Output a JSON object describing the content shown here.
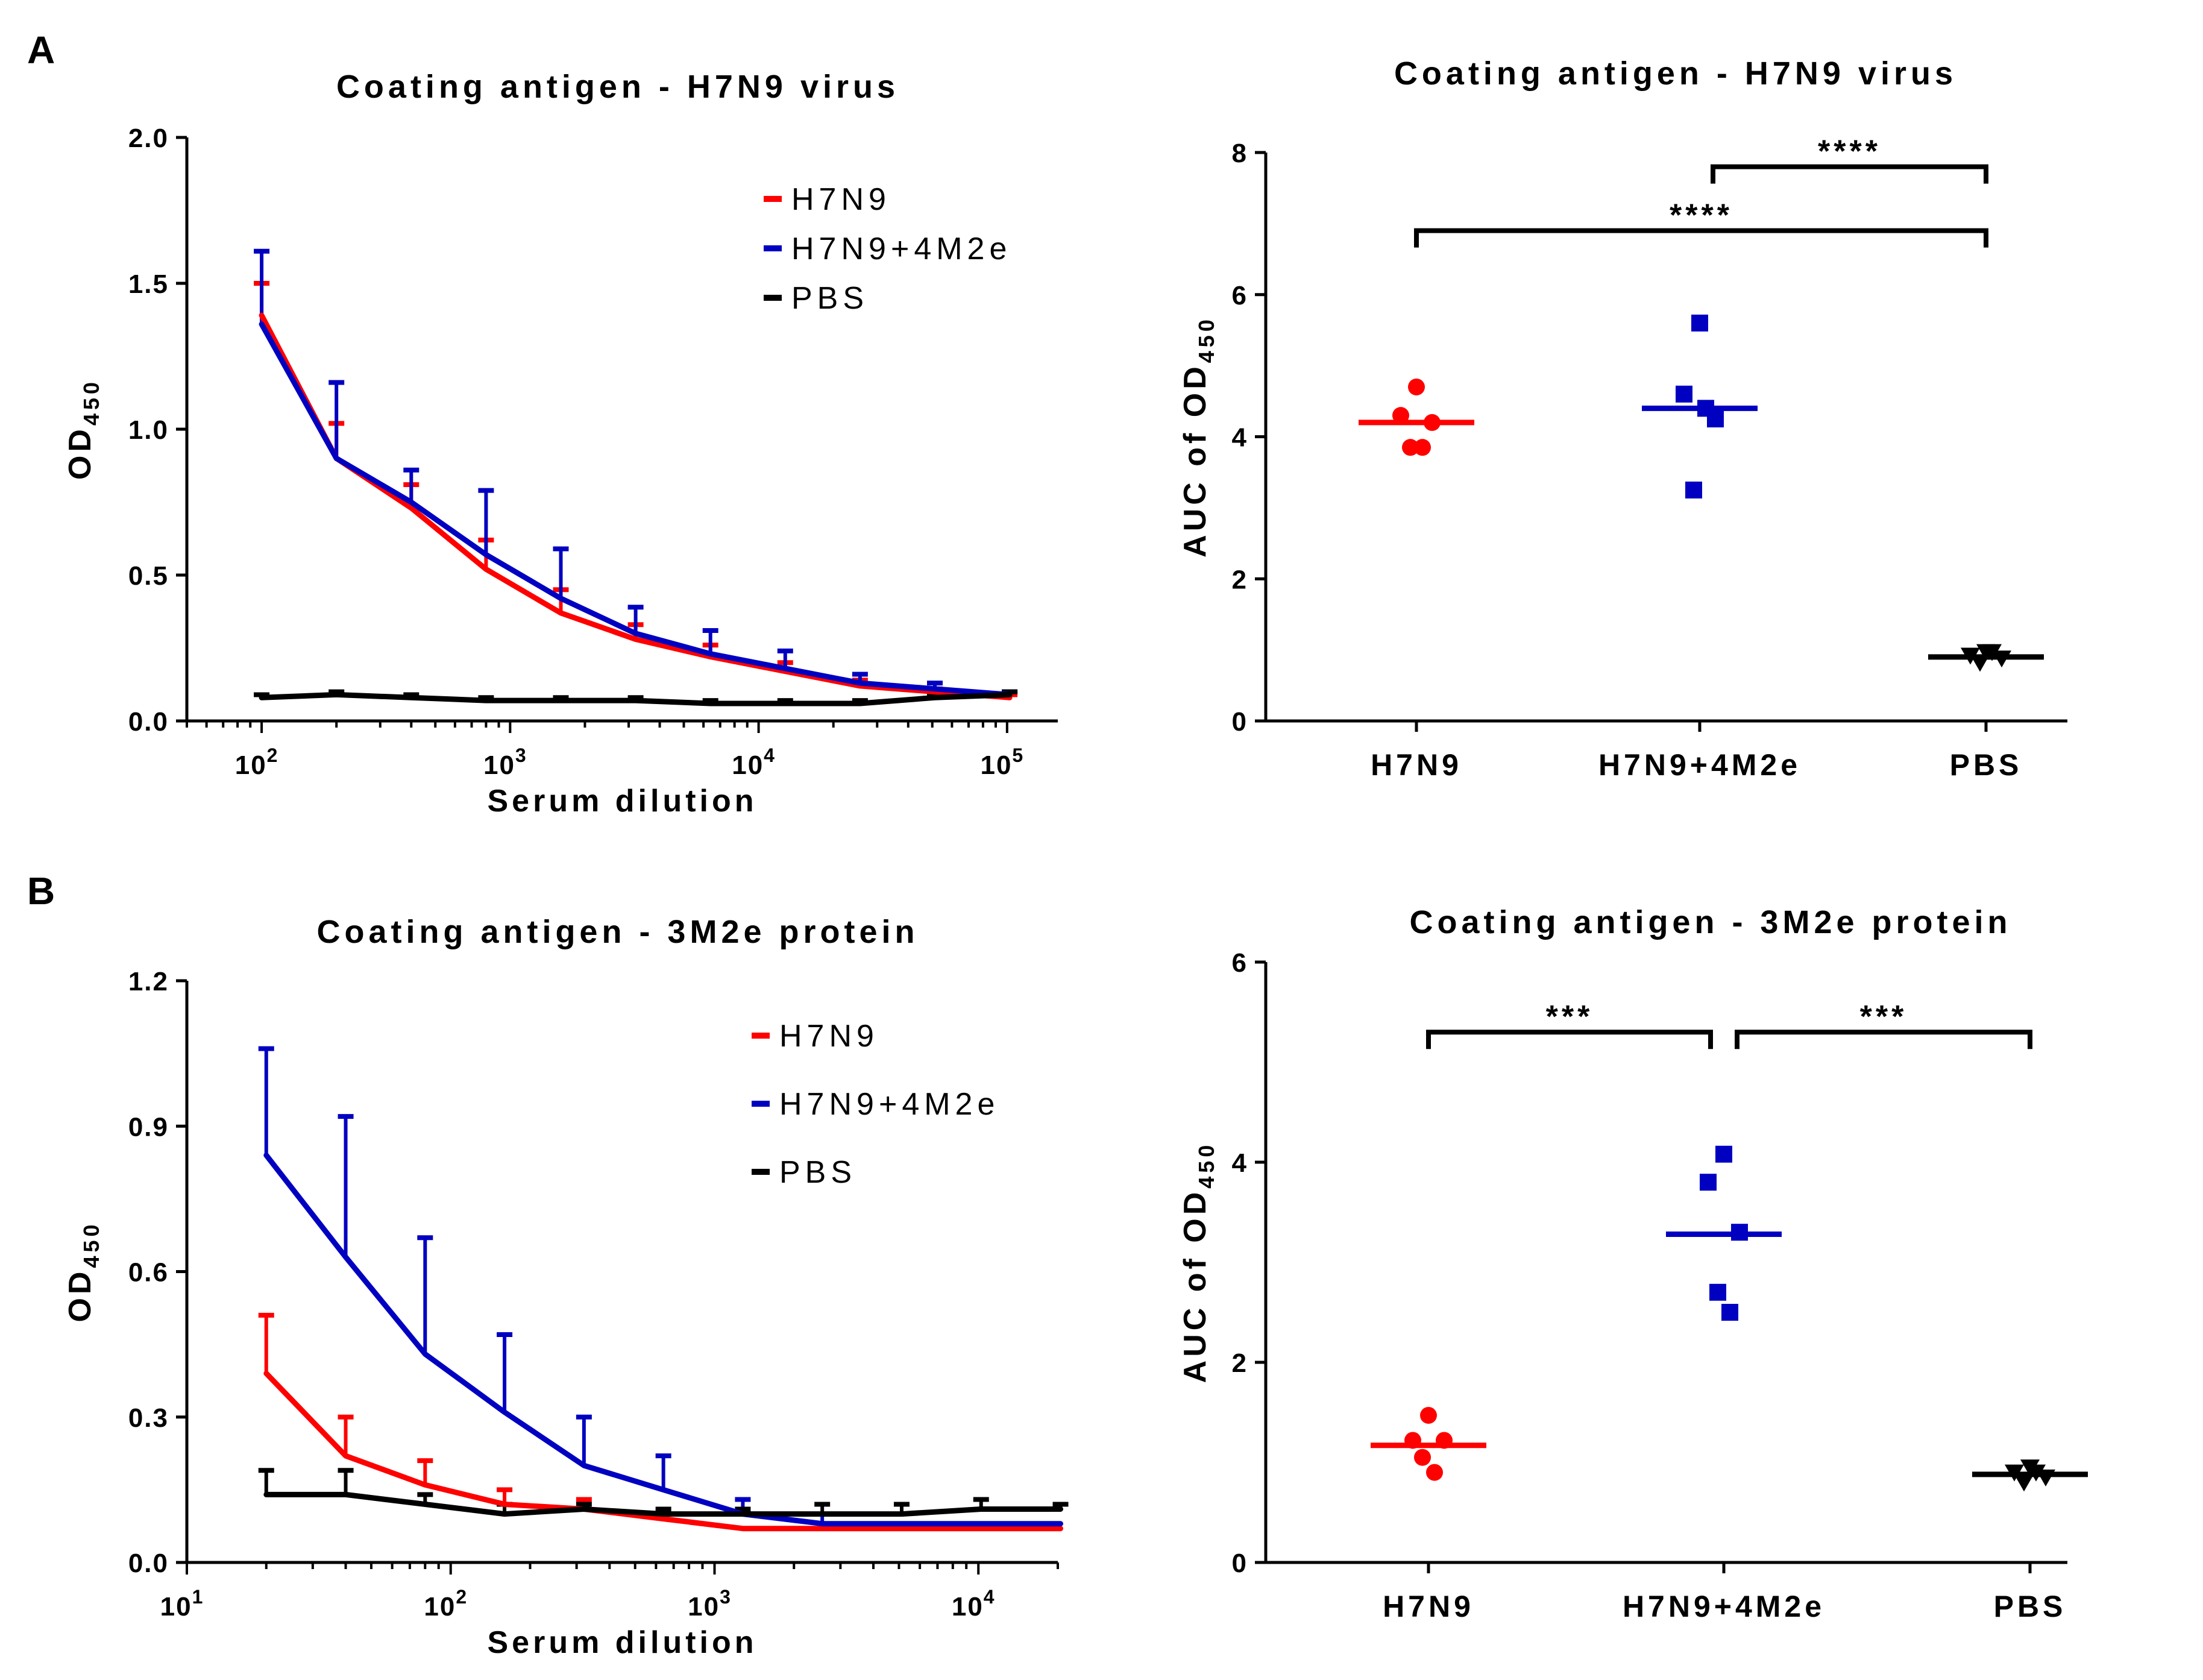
{
  "panels": {
    "a": "A",
    "b": "B"
  },
  "colors": {
    "h7n9": "#ff0000",
    "h7n9_4m2e": "#0000c0",
    "pbs": "#000000"
  },
  "chart_data": [
    {
      "type": "line",
      "title": "Coating antigen - H7N9 virus",
      "xlabel": "Serum dilution",
      "ylabel": "OD",
      "ylabel_sub": "450",
      "xscale": "log",
      "xlim": [
        50,
        160000
      ],
      "ylim": [
        0,
        2.0
      ],
      "yticks": [
        "0.0",
        "0.5",
        "1.0",
        "1.5",
        "2.0"
      ],
      "ytick_values": [
        0,
        0.5,
        1.0,
        1.5,
        2.0
      ],
      "xticks": [
        {
          "base": "10",
          "exp": "2",
          "value": 100
        },
        {
          "base": "10",
          "exp": "3",
          "value": 1000
        },
        {
          "base": "10",
          "exp": "4",
          "value": 10000
        },
        {
          "base": "10",
          "exp": "5",
          "value": 100000
        }
      ],
      "legend": [
        "H7N9",
        "H7N9+4M2e",
        "PBS"
      ],
      "x": [
        100,
        200,
        400,
        800,
        1600,
        3200,
        6400,
        12800,
        25600,
        51200,
        102400
      ],
      "series": [
        {
          "name": "H7N9",
          "color_key": "h7n9",
          "values": [
            1.39,
            0.9,
            0.73,
            0.52,
            0.37,
            0.28,
            0.22,
            0.17,
            0.12,
            0.1,
            0.08
          ],
          "errors": [
            0.11,
            0.12,
            0.08,
            0.1,
            0.08,
            0.05,
            0.04,
            0.03,
            0.02,
            0.01,
            0.01
          ]
        },
        {
          "name": "H7N9+4M2e",
          "color_key": "h7n9_4m2e",
          "values": [
            1.36,
            0.9,
            0.75,
            0.57,
            0.42,
            0.3,
            0.23,
            0.18,
            0.13,
            0.11,
            0.09
          ],
          "errors": [
            0.25,
            0.26,
            0.11,
            0.22,
            0.17,
            0.09,
            0.08,
            0.06,
            0.03,
            0.02,
            0.01
          ]
        },
        {
          "name": "PBS",
          "color_key": "pbs",
          "values": [
            0.08,
            0.09,
            0.08,
            0.07,
            0.07,
            0.07,
            0.06,
            0.06,
            0.06,
            0.08,
            0.09
          ],
          "errors": [
            0.01,
            0.01,
            0.01,
            0.01,
            0.01,
            0.01,
            0.01,
            0.01,
            0.01,
            0.01,
            0.01
          ]
        }
      ]
    },
    {
      "type": "scatter",
      "title": "Coating antigen - H7N9 virus",
      "ylabel": "AUC of OD",
      "ylabel_sub": "450",
      "ylim": [
        0,
        8
      ],
      "yticks": [
        "0",
        "2",
        "4",
        "6",
        "8"
      ],
      "ytick_values": [
        0,
        2,
        4,
        6,
        8
      ],
      "categories": [
        "H7N9",
        "H7N9+4M2e",
        "PBS"
      ],
      "groups": [
        {
          "name": "H7N9",
          "color_key": "h7n9",
          "marker": "circle",
          "points": [
            4.7,
            4.3,
            4.2,
            3.85,
            3.85
          ],
          "mean": 4.2
        },
        {
          "name": "H7N9+4M2e",
          "color_key": "h7n9_4m2e",
          "marker": "square",
          "points": [
            5.6,
            4.6,
            4.25,
            3.25,
            4.4
          ],
          "mean": 4.4
        },
        {
          "name": "PBS",
          "color_key": "pbs",
          "marker": "triangle-down",
          "points": [
            0.97,
            0.92,
            0.88,
            0.82,
            0.97
          ],
          "mean": 0.9
        }
      ],
      "annotations": [
        {
          "from": 1,
          "to": 2,
          "y": 7.8,
          "label": "****"
        },
        {
          "from": 0,
          "to": 2,
          "y": 6.9,
          "label": "****"
        }
      ]
    },
    {
      "type": "line",
      "title": "Coating antigen - 3M2e protein",
      "xlabel": "Serum dilution",
      "ylabel": "OD",
      "ylabel_sub": "450",
      "xscale": "log",
      "xlim": [
        10,
        20000
      ],
      "ylim": [
        0,
        1.2
      ],
      "yticks": [
        "0.0",
        "0.3",
        "0.6",
        "0.9",
        "1.2"
      ],
      "ytick_values": [
        0,
        0.3,
        0.6,
        0.9,
        1.2
      ],
      "xticks": [
        {
          "base": "10",
          "exp": "1",
          "value": 10
        },
        {
          "base": "10",
          "exp": "2",
          "value": 100
        },
        {
          "base": "10",
          "exp": "3",
          "value": 1000
        },
        {
          "base": "10",
          "exp": "4",
          "value": 10000
        }
      ],
      "legend": [
        "H7N9",
        "H7N9+4M2e",
        "PBS"
      ],
      "x": [
        20,
        40,
        80,
        160,
        320,
        640,
        1280,
        2560,
        5120,
        10240,
        20480
      ],
      "series": [
        {
          "name": "H7N9",
          "color_key": "h7n9",
          "values": [
            0.39,
            0.22,
            0.16,
            0.12,
            0.11,
            0.09,
            0.07,
            0.07,
            0.07,
            0.07,
            0.07
          ],
          "errors": [
            0.12,
            0.08,
            0.05,
            0.03,
            0.02,
            0.01,
            0,
            0,
            0,
            0,
            0
          ]
        },
        {
          "name": "H7N9+4M2e",
          "color_key": "h7n9_4m2e",
          "values": [
            0.84,
            0.63,
            0.43,
            0.31,
            0.2,
            0.15,
            0.1,
            0.08,
            0.08,
            0.08,
            0.08
          ],
          "errors": [
            0.22,
            0.29,
            0.24,
            0.16,
            0.1,
            0.07,
            0.03,
            0.02,
            0,
            0,
            0
          ]
        },
        {
          "name": "PBS",
          "color_key": "pbs",
          "values": [
            0.14,
            0.14,
            0.12,
            0.1,
            0.11,
            0.1,
            0.1,
            0.1,
            0.1,
            0.11,
            0.11
          ],
          "errors": [
            0.05,
            0.05,
            0.02,
            0.02,
            0.01,
            0.01,
            0.01,
            0.02,
            0.02,
            0.02,
            0.01
          ]
        }
      ]
    },
    {
      "type": "scatter",
      "title": "Coating antigen - 3M2e protein",
      "ylabel": "AUC of OD",
      "ylabel_sub": "450",
      "ylim": [
        0,
        6
      ],
      "yticks": [
        "0",
        "2",
        "4",
        "6"
      ],
      "ytick_values": [
        0,
        2,
        4,
        6
      ],
      "categories": [
        "H7N9",
        "H7N9+4M2e",
        "PBS"
      ],
      "groups": [
        {
          "name": "H7N9",
          "color_key": "h7n9",
          "marker": "circle",
          "points": [
            1.47,
            1.22,
            1.22,
            1.05,
            0.9
          ],
          "mean": 1.17
        },
        {
          "name": "H7N9+4M2e",
          "color_key": "h7n9_4m2e",
          "marker": "square",
          "points": [
            4.08,
            3.8,
            3.3,
            2.7,
            2.5
          ],
          "mean": 3.28
        },
        {
          "name": "PBS",
          "color_key": "pbs",
          "marker": "triangle-down",
          "points": [
            0.95,
            0.9,
            0.85,
            0.8,
            0.9
          ],
          "mean": 0.88
        }
      ],
      "annotations": [
        {
          "from": 0,
          "to": 1,
          "y": 5.3,
          "label": "***"
        },
        {
          "from": 1,
          "to": 2,
          "y": 5.3,
          "label": "***"
        }
      ]
    }
  ]
}
